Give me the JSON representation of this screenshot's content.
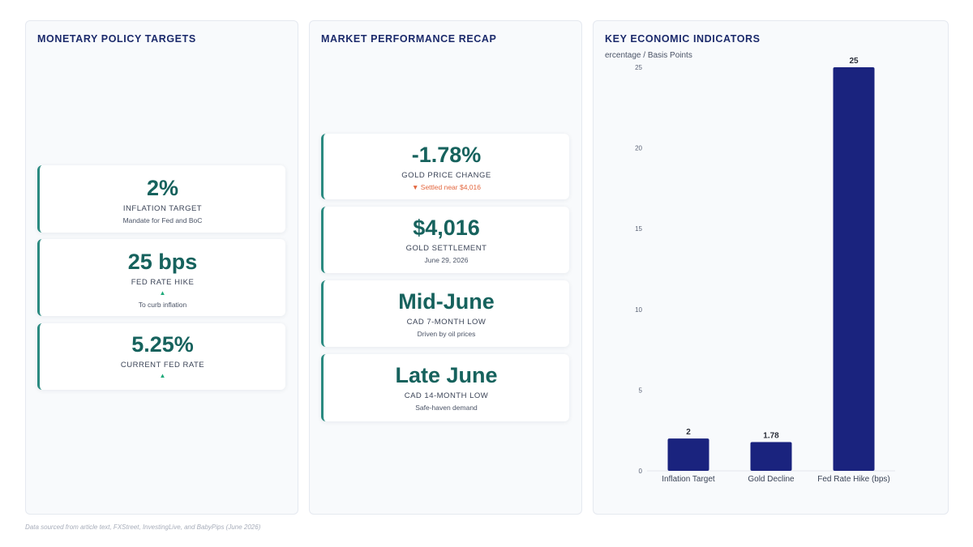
{
  "policy": {
    "title": "MONETARY POLICY TARGETS",
    "cards": [
      {
        "value": "2%",
        "label": "INFLATION TARGET",
        "note": "Mandate for Fed and BoC"
      },
      {
        "value": "25 bps",
        "label": "FED RATE HIKE",
        "arrow": "▲",
        "note": "To curb inflation"
      },
      {
        "value": "5.25%",
        "label": "CURRENT FED RATE",
        "arrow": "▲"
      }
    ]
  },
  "market": {
    "title": "MARKET PERFORMANCE RECAP",
    "cards": [
      {
        "value": "-1.78%",
        "label": "GOLD PRICE CHANGE",
        "note": "▼ Settled near $4,016"
      },
      {
        "value": "$4,016",
        "label": "GOLD SETTLEMENT",
        "note": "June 29, 2026"
      },
      {
        "value": "Mid-June",
        "label": "CAD 7-MONTH LOW",
        "note": "Driven by oil prices"
      },
      {
        "value": "Late June",
        "label": "CAD 14-MONTH LOW",
        "note": "Safe-haven demand"
      }
    ]
  },
  "indicators": {
    "title": "KEY ECONOMIC INDICATORS"
  },
  "chart_data": {
    "type": "bar",
    "title": "KEY ECONOMIC INDICATORS",
    "ylabel": "ercentage / Basis Points",
    "categories": [
      "Inflation Target",
      "Gold Decline",
      "Fed Rate Hike (bps)"
    ],
    "values": [
      2,
      1.78,
      25
    ],
    "data_labels": [
      "2",
      "1.78",
      "25"
    ],
    "ylim": [
      0,
      25
    ],
    "yticks": [
      0,
      5,
      10,
      15,
      20,
      25
    ],
    "ytick_labels": [
      "0",
      "5",
      "10",
      "15",
      "20",
      "25"
    ],
    "bar_color": "#1a237e",
    "grid": false,
    "legend": "none"
  },
  "footer": "Data sourced from article text, FXStreet, InvestingLive, and BabyPips (June 2026)"
}
